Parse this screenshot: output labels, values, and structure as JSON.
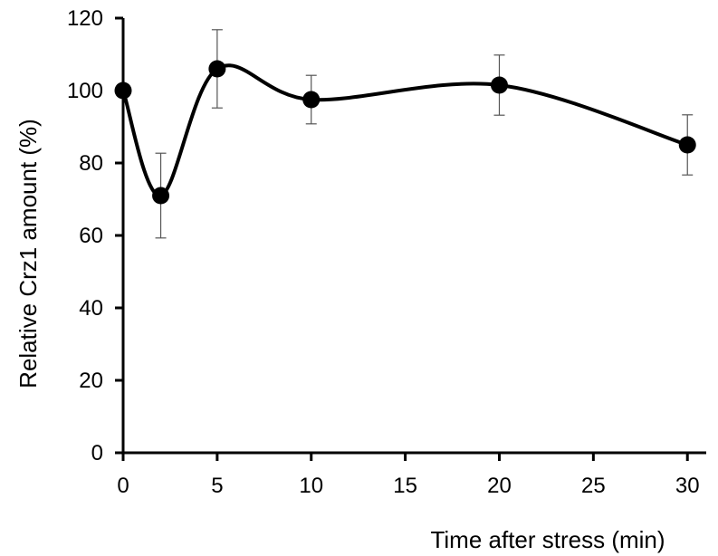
{
  "chart_data": {
    "type": "line",
    "title": "",
    "xlabel": "Time after stress (min)",
    "ylabel": "Relative Crz1 amount (%)",
    "xlim": [
      0,
      31
    ],
    "ylim": [
      0,
      120
    ],
    "x_ticks": [
      "0",
      "5",
      "10",
      "15",
      "20",
      "25",
      "30"
    ],
    "y_ticks": [
      "0",
      "20",
      "40",
      "60",
      "80",
      "100",
      "120"
    ],
    "grid": false,
    "legend": "none",
    "smooth": true,
    "series": [
      {
        "x": [
          0,
          2,
          5,
          10,
          20,
          30
        ],
        "y": [
          100,
          71,
          106,
          97.5,
          101.5,
          85
        ],
        "error": [
          0,
          11.7,
          10.8,
          6.7,
          8.3,
          8.3
        ],
        "color": "#000000",
        "marker": "filled-circle"
      }
    ]
  }
}
